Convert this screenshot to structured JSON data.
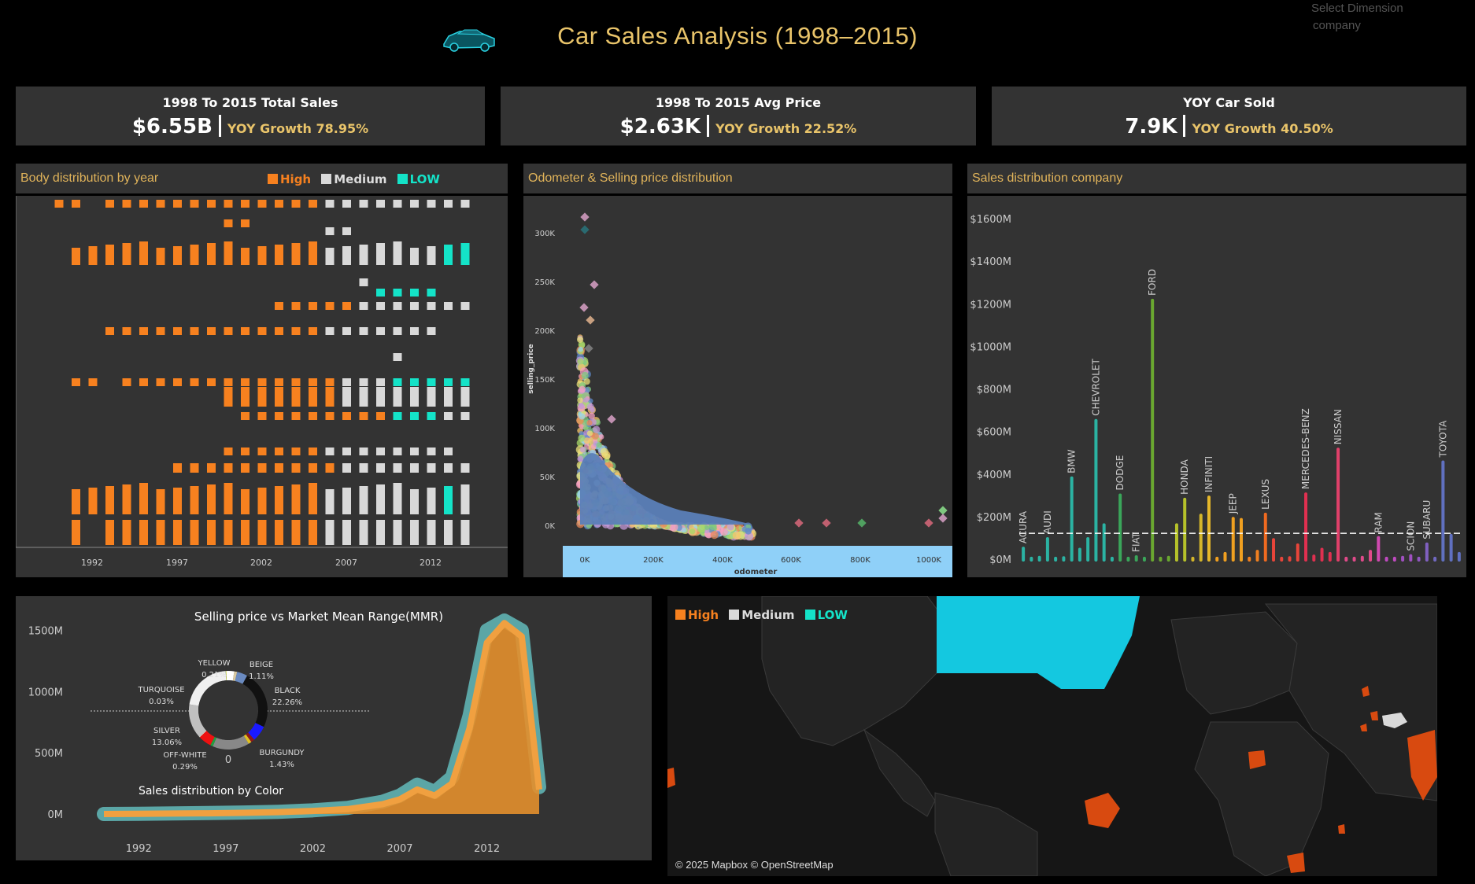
{
  "header": {
    "title": "Car Sales Analysis (1998–2015)",
    "icon": "car-icon",
    "dimension_label": "Select Dimension",
    "dimension_value": "company"
  },
  "kpis": [
    {
      "label": "1998 To 2015 Total Sales",
      "value": "$6.55B",
      "yoy": "YOY Growth 78.95%"
    },
    {
      "label": "1998 To 2015 Avg Price",
      "value": "$2.63K",
      "yoy": "YOY Growth 22.52%"
    },
    {
      "label": "YOY Car Sold",
      "value": "7.9K",
      "yoy": "YOY Growth 40.50%"
    }
  ],
  "colors": {
    "accent": "#e9c46a",
    "high": "#f7811f",
    "medium": "#d9d9d9",
    "low": "#14e3c8",
    "panel": "#333333"
  },
  "legend": {
    "high": "High",
    "medium": "Medium",
    "low": "LOW"
  },
  "body_dist": {
    "title": "Body distribution by year",
    "x_ticks": [
      "1992",
      "1997",
      "2002",
      "2007",
      "2012"
    ]
  },
  "scatter": {
    "title": "Odometer & Selling price distribution",
    "y_ticks": [
      "300K",
      "250K",
      "200K",
      "150K",
      "100K",
      "50K",
      "0K"
    ],
    "x_ticks": [
      "0K",
      "200K",
      "400K",
      "600K",
      "800K",
      "1000K"
    ],
    "xlabel": "odometer",
    "ylabel": "selling_price"
  },
  "company_chart": {
    "title": "Sales distribution company",
    "y_ticks": [
      "$1600M",
      "$1400M",
      "$1200M",
      "$1000M",
      "$800M",
      "$600M",
      "$400M",
      "$200M",
      "$0M"
    ]
  },
  "color_chart": {
    "title": "Selling price vs Market Mean Range(MMR)",
    "donut_title": "Sales distribution by Color",
    "donut_center": "0",
    "y_ticks": [
      "1500M",
      "1000M",
      "500M",
      "0M"
    ],
    "x_ticks": [
      "1992",
      "1997",
      "2002",
      "2007",
      "2012"
    ],
    "donut_labels": [
      {
        "name": "YELLOW",
        "pct": "0.21%"
      },
      {
        "name": "BEIGE",
        "pct": "1.11%"
      },
      {
        "name": "BLACK",
        "pct": "22.26%"
      },
      {
        "name": "TURQUOISE",
        "pct": "0.03%"
      },
      {
        "name": "SILVER",
        "pct": "13.06%"
      },
      {
        "name": "OFF-WHITE",
        "pct": "0.29%"
      },
      {
        "name": "BURGUNDY",
        "pct": "1.43%"
      }
    ]
  },
  "map": {
    "credit": "© 2025 Mapbox © OpenStreetMap"
  },
  "chart_data": [
    {
      "type": "bar",
      "title": "Sales distribution company",
      "ylim": [
        0,
        1700
      ],
      "unit": "$M",
      "reference_line": 125,
      "bars": [
        {
          "label": "ACURA",
          "value": 55,
          "color": "#2bb3a3"
        },
        {
          "label": "",
          "value": 8,
          "color": "#2bb3a3"
        },
        {
          "label": "",
          "value": 12,
          "color": "#2bb3a3"
        },
        {
          "label": "AUDI",
          "value": 100,
          "color": "#2bb3a3"
        },
        {
          "label": "",
          "value": 8,
          "color": "#2bb3a3"
        },
        {
          "label": "",
          "value": 10,
          "color": "#2bb3a3"
        },
        {
          "label": "BMW",
          "value": 385,
          "color": "#2bb3a3"
        },
        {
          "label": "",
          "value": 50,
          "color": "#2bb3a3"
        },
        {
          "label": "",
          "value": 100,
          "color": "#2bb3a3"
        },
        {
          "label": "CHEVROLET",
          "value": 655,
          "color": "#2bb3a3"
        },
        {
          "label": "",
          "value": 165,
          "color": "#2bb3a3"
        },
        {
          "label": "",
          "value": 8,
          "color": "#2bb3a3"
        },
        {
          "label": "DODGE",
          "value": 305,
          "color": "#3aa65a"
        },
        {
          "label": "",
          "value": 8,
          "color": "#3aa65a"
        },
        {
          "label": "FIAT",
          "value": 15,
          "color": "#3aa65a"
        },
        {
          "label": "",
          "value": 8,
          "color": "#3aa65a"
        },
        {
          "label": "FORD",
          "value": 1220,
          "color": "#6aa830"
        },
        {
          "label": "",
          "value": 8,
          "color": "#6aa830"
        },
        {
          "label": "",
          "value": 12,
          "color": "#6aa830"
        },
        {
          "label": "",
          "value": 165,
          "color": "#b6c22a"
        },
        {
          "label": "HONDA",
          "value": 285,
          "color": "#b6c22a"
        },
        {
          "label": "",
          "value": 8,
          "color": "#d4b62a"
        },
        {
          "label": "",
          "value": 210,
          "color": "#d4b62a"
        },
        {
          "label": "INFINITI",
          "value": 295,
          "color": "#e6b82a"
        },
        {
          "label": "",
          "value": 8,
          "color": "#f0a020"
        },
        {
          "label": "",
          "value": 30,
          "color": "#f0a020"
        },
        {
          "label": "JEEP",
          "value": 195,
          "color": "#f0a020"
        },
        {
          "label": "",
          "value": 190,
          "color": "#f0a020"
        },
        {
          "label": "",
          "value": 8,
          "color": "#f08020"
        },
        {
          "label": "",
          "value": 40,
          "color": "#f08020"
        },
        {
          "label": "LEXUS",
          "value": 215,
          "color": "#f06a20"
        },
        {
          "label": "",
          "value": 95,
          "color": "#e8453a"
        },
        {
          "label": "",
          "value": 8,
          "color": "#e8453a"
        },
        {
          "label": "",
          "value": 10,
          "color": "#e8453a"
        },
        {
          "label": "",
          "value": 70,
          "color": "#e8453a"
        },
        {
          "label": "MERCEDES-BENZ",
          "value": 310,
          "color": "#e03050"
        },
        {
          "label": "",
          "value": 18,
          "color": "#e03050"
        },
        {
          "label": "",
          "value": 50,
          "color": "#e03050"
        },
        {
          "label": "",
          "value": 30,
          "color": "#e03050"
        },
        {
          "label": "NISSAN",
          "value": 520,
          "color": "#e0406a"
        },
        {
          "label": "",
          "value": 8,
          "color": "#e04a8a"
        },
        {
          "label": "",
          "value": 8,
          "color": "#e04a8a"
        },
        {
          "label": "",
          "value": 12,
          "color": "#e04a8a"
        },
        {
          "label": "",
          "value": 40,
          "color": "#e04a8a"
        },
        {
          "label": "RAM",
          "value": 105,
          "color": "#d04ab0"
        },
        {
          "label": "",
          "value": 8,
          "color": "#c04ac0"
        },
        {
          "label": "",
          "value": 8,
          "color": "#c04ac0"
        },
        {
          "label": "",
          "value": 12,
          "color": "#a050c0"
        },
        {
          "label": "SCION",
          "value": 20,
          "color": "#a050c0"
        },
        {
          "label": "",
          "value": 8,
          "color": "#9058c0"
        },
        {
          "label": "SUBARU",
          "value": 75,
          "color": "#8060c0"
        },
        {
          "label": "",
          "value": 8,
          "color": "#7068c0"
        },
        {
          "label": "TOYOTA",
          "value": 460,
          "color": "#6070c0"
        },
        {
          "label": "",
          "value": 115,
          "color": "#6070c0"
        },
        {
          "label": "",
          "value": 30,
          "color": "#6070c0"
        }
      ]
    },
    {
      "type": "area",
      "title": "Selling price vs Market Mean Range(MMR)",
      "ylim": [
        0,
        1600
      ],
      "unit": "M",
      "x": [
        1990,
        1992,
        1994,
        1996,
        1998,
        2000,
        2002,
        2004,
        2006,
        2007,
        2008,
        2009,
        2010,
        2011,
        2012,
        2013,
        2014,
        2015
      ],
      "series": [
        {
          "values": [
            0,
            2,
            4,
            6,
            10,
            15,
            25,
            40,
            80,
            120,
            200,
            150,
            250,
            700,
            1400,
            1560,
            1450,
            200
          ],
          "color": "#e38f2c"
        },
        {
          "values": [
            0,
            2,
            5,
            8,
            12,
            18,
            30,
            50,
            100,
            150,
            240,
            180,
            300,
            800,
            1500,
            1580,
            1500,
            220
          ],
          "color": "#5ba6a6"
        }
      ]
    },
    {
      "type": "pie",
      "title": "Sales distribution by Color",
      "slices": [
        {
          "label": "BLACK",
          "value": 22.26,
          "color": "#111111"
        },
        {
          "label": "",
          "value": 6.0,
          "color": "#1a1aff"
        },
        {
          "label": "BURGUNDY",
          "value": 1.43,
          "color": "#8b1a1a"
        },
        {
          "label": "",
          "value": 1.2,
          "color": "#e0c020"
        },
        {
          "label": "",
          "value": 14.0,
          "color": "#888888"
        },
        {
          "label": "",
          "value": 1.0,
          "color": "#20a040"
        },
        {
          "label": "",
          "value": 5.0,
          "color": "#ee1111"
        },
        {
          "label": "OFF-WHITE",
          "value": 0.29,
          "color": "#e8e8d8"
        },
        {
          "label": "SILVER",
          "value": 13.06,
          "color": "#c0c0c0"
        },
        {
          "label": "",
          "value": 20.0,
          "color": "#f0f0f0"
        },
        {
          "label": "TURQUOISE",
          "value": 0.03,
          "color": "#30d0c0"
        },
        {
          "label": "YELLOW",
          "value": 0.21,
          "color": "#e0e020"
        },
        {
          "label": "",
          "value": 3.0,
          "color": "#ffffff"
        },
        {
          "label": "BEIGE",
          "value": 1.11,
          "color": "#d8c8a0"
        },
        {
          "label": "",
          "value": 4.0,
          "color": "#6a8ac0"
        }
      ]
    }
  ]
}
